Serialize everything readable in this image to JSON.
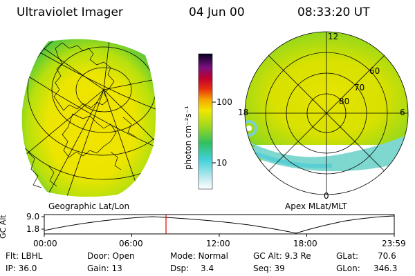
{
  "header": {
    "title": "Ultraviolet Imager",
    "date": "04 Jun 00",
    "time": "08:33:20 UT"
  },
  "left_panel": {
    "caption": "Geographic Lat/Lon"
  },
  "right_panel": {
    "caption": "Apex MLat/MLT",
    "mlt_labels": [
      "12",
      "18",
      "6",
      "0"
    ],
    "lat_labels": [
      "60",
      "70",
      "80"
    ]
  },
  "colorbar": {
    "unit_label": "photon cm⁻²s⁻¹",
    "ticks": [
      "100",
      "10"
    ],
    "scale": "log"
  },
  "altitude_plot": {
    "ylabel": "GC Alt",
    "y_ticks": [
      "9.0",
      "1.8"
    ],
    "x_ticks": [
      "00:00",
      "06:00",
      "12:00",
      "18:00",
      "23:59"
    ],
    "marker_time": "08:33:20",
    "marker_color": "#e00000"
  },
  "info": {
    "filter": "Flt: LBHL",
    "ip": "IP: 36.0",
    "door": "Door: Open",
    "gain": "Gain: 13",
    "mode": "Mode: Normal",
    "dsp_label": "Dsp:",
    "dsp_value": "3.4",
    "gc_alt": "GC Alt: 9.3 Re",
    "seq": "Seq: 39",
    "glat_label": "GLat:",
    "glat_value": "70.6",
    "glon_label": "GLon:",
    "glon_value": "346.3"
  },
  "colors": {
    "aurora_yellow": "#f5e600",
    "aurora_green": "#6ed22a",
    "aurora_cyan": "#40d0d8",
    "grid": "#000000"
  }
}
